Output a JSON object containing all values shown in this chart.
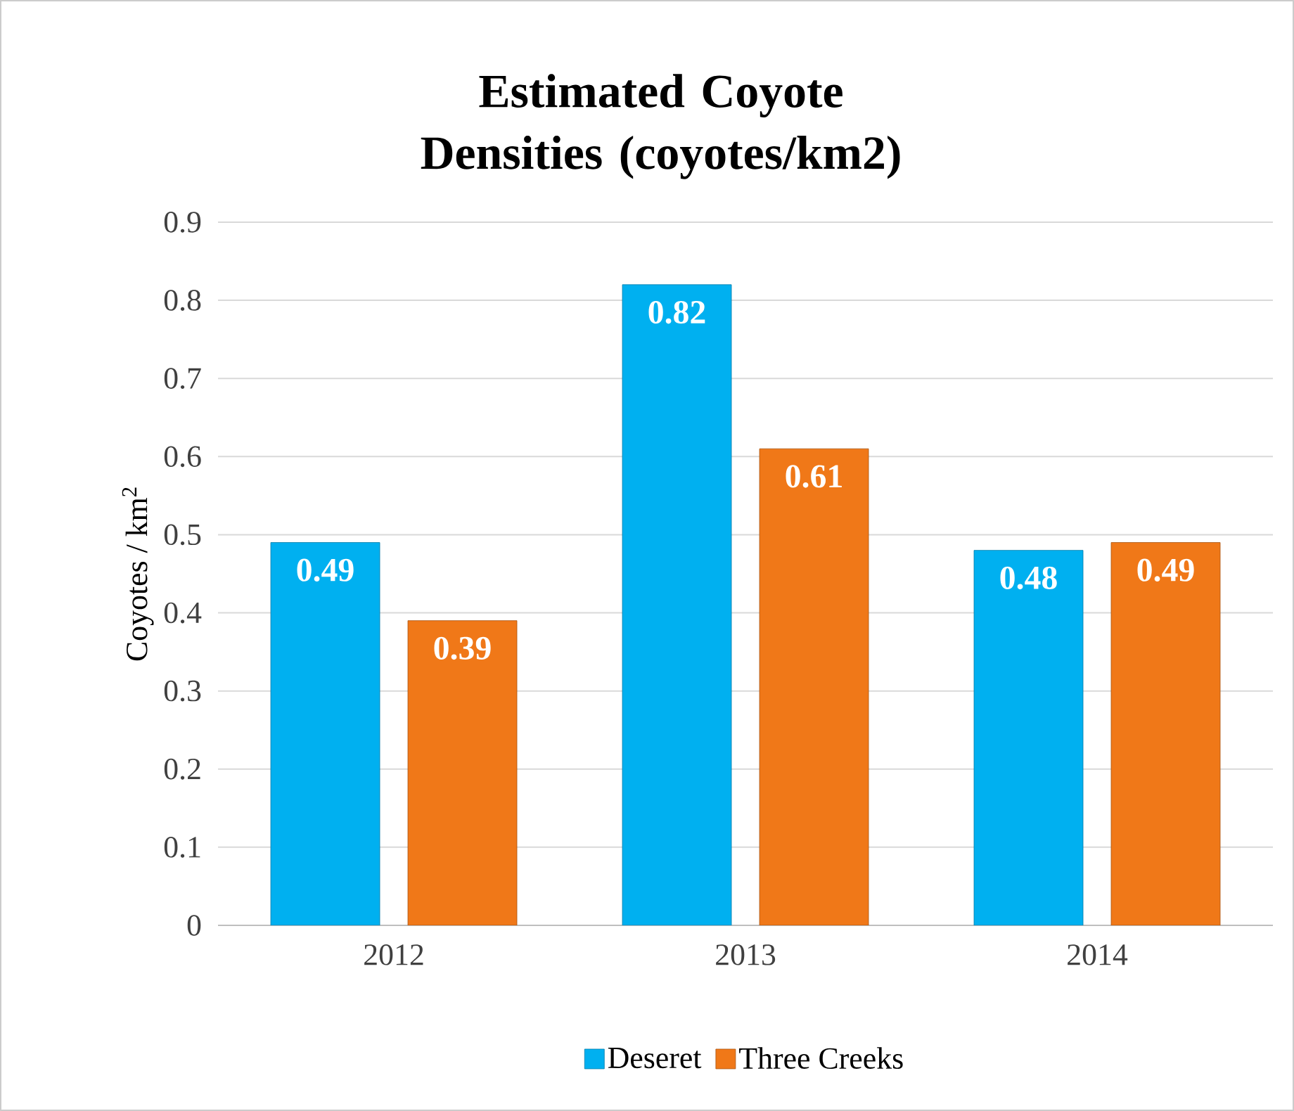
{
  "chart_data": {
    "type": "bar",
    "title": "Estimated Coyote Densities (coyotes/km2)",
    "ylabel": "Coyotes / km$^{2}$",
    "categories": [
      "2012",
      "2013",
      "2014"
    ],
    "series": [
      {
        "name": "Deseret",
        "color": "#00b0f0",
        "values": [
          0.49,
          0.82,
          0.48
        ]
      },
      {
        "name": "Three Creeks",
        "color": "#f07818",
        "values": [
          0.39,
          0.61,
          0.49
        ]
      }
    ],
    "ylim": [
      0,
      0.9
    ],
    "yticks": [
      0,
      0.1,
      0.2,
      0.3,
      0.4,
      0.5,
      0.6,
      0.7,
      0.8,
      0.9
    ],
    "grid": "y",
    "legend": "bottom",
    "data_labels": true
  }
}
